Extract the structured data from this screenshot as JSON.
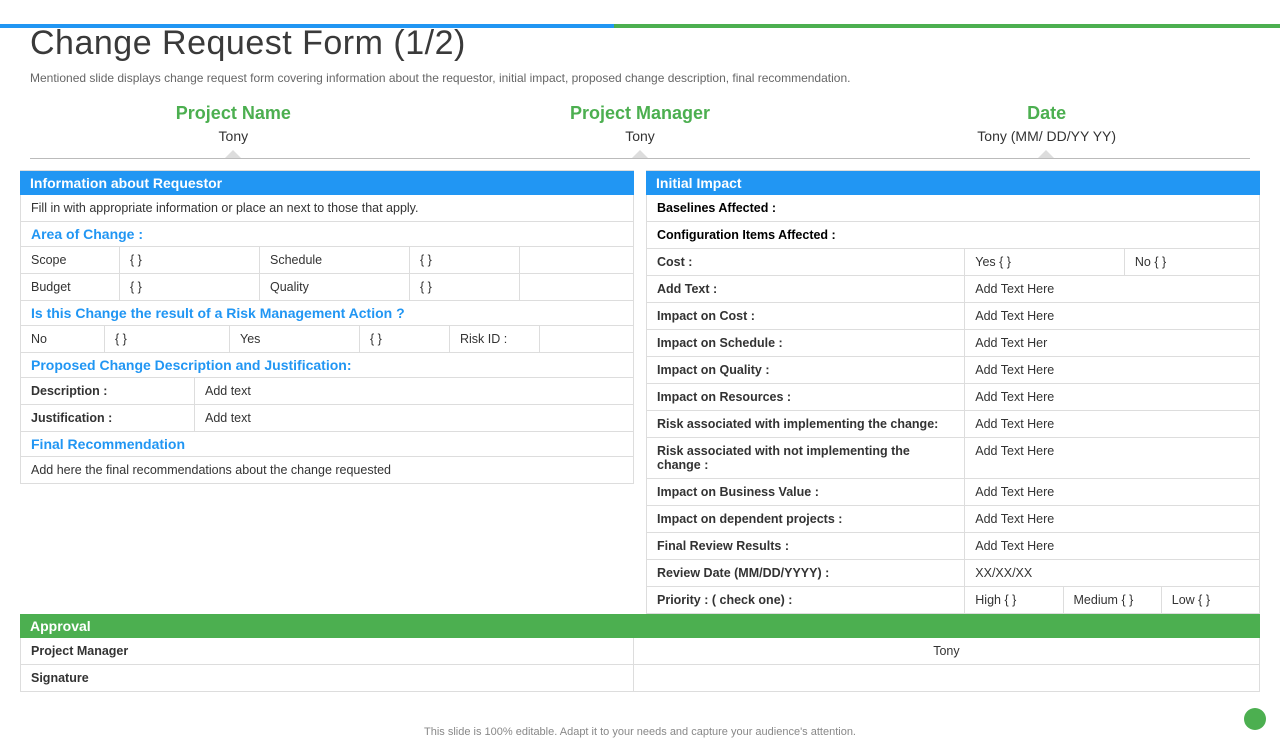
{
  "colors": {
    "blue": "#2196f3",
    "green": "#4caf50",
    "text": "#333",
    "muted": "#666",
    "border": "#ddd"
  },
  "title": "Change Request Form (1/2)",
  "subtitle": "Mentioned slide displays change request form covering information about the requestor, initial impact, proposed change description, final recommendation.",
  "meta": {
    "project_name": {
      "label": "Project Name",
      "value": "Tony"
    },
    "project_manager": {
      "label": "Project Manager",
      "value": "Tony"
    },
    "date": {
      "label": "Date",
      "value": "Tony (MM/ DD/YY YY)"
    }
  },
  "left": {
    "info_header": "Information about Requestor",
    "info_text": "Fill in with appropriate information or place an next to those that apply.",
    "area_header": "Area of Change :",
    "area_rows": [
      [
        "Scope",
        "{  }",
        "Schedule",
        "{  }",
        ""
      ],
      [
        "Budget",
        "{  }",
        "Quality",
        "{  }",
        ""
      ]
    ],
    "risk_header": "Is this Change the result of a Risk Management Action ?",
    "risk_row": [
      "No",
      "{  }",
      "Yes",
      "{  }",
      "Risk ID :",
      ""
    ],
    "proposed_header": "Proposed Change Description and Justification:",
    "desc_rows": [
      [
        "Description :",
        "Add text"
      ],
      [
        "Justification :",
        "Add text"
      ]
    ],
    "final_header": "Final Recommendation",
    "final_text": "Add here the final recommendations about the change requested"
  },
  "right": {
    "impact_header": "Initial Impact",
    "rows_plain": [
      "Baselines Affected :",
      "Configuration Items Affected :"
    ],
    "cost_row": [
      "Cost :",
      "Yes {  }",
      "No {  }"
    ],
    "impact_rows": [
      [
        "Add Text :",
        "Add Text Here"
      ],
      [
        "Impact on Cost :",
        "Add Text Here"
      ],
      [
        "Impact on Schedule :",
        "Add Text Her"
      ],
      [
        "Impact on Quality :",
        "Add Text Here"
      ],
      [
        "Impact on Resources :",
        "Add Text Here"
      ],
      [
        "Risk associated with implementing the change:",
        "Add Text Here"
      ],
      [
        "Risk associated with not implementing the change :",
        "Add Text Here"
      ],
      [
        "Impact on Business Value :",
        "Add Text Here"
      ],
      [
        "Impact on dependent projects :",
        "Add Text Here"
      ],
      [
        "Final Review Results :",
        "Add Text Here"
      ],
      [
        "Review Date (MM/DD/YYYY) :",
        "XX/XX/XX"
      ]
    ],
    "priority_row": [
      "Priority : ( check one) :",
      "High {  }",
      "Medium {  }",
      "Low {  }"
    ]
  },
  "approval": {
    "header": "Approval",
    "rows": [
      [
        "Project Manager",
        "Tony"
      ],
      [
        "Signature",
        ""
      ]
    ]
  },
  "footer": "This slide is 100% editable. Adapt it to your needs and capture your audience's attention."
}
